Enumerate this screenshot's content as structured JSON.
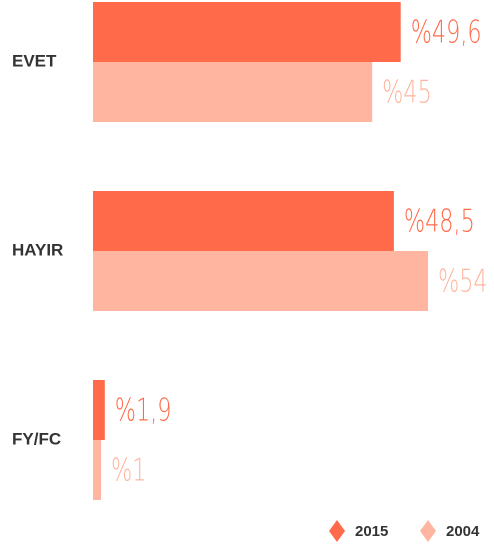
{
  "chart_data": {
    "type": "hbar",
    "categories": [
      "EVET",
      "HAYIR",
      "FY/FC"
    ],
    "series": [
      {
        "name": "2015",
        "color": "#ff6b4a",
        "values": [
          49.6,
          48.5,
          1.9
        ],
        "value_labels": [
          "%49,6",
          "%48,5",
          "%1,9"
        ]
      },
      {
        "name": "2004",
        "color": "#ffb59f",
        "values": [
          45,
          54,
          1
        ],
        "value_labels": [
          "%45",
          "%54",
          "%1"
        ]
      }
    ],
    "legend": "bottom-right"
  }
}
